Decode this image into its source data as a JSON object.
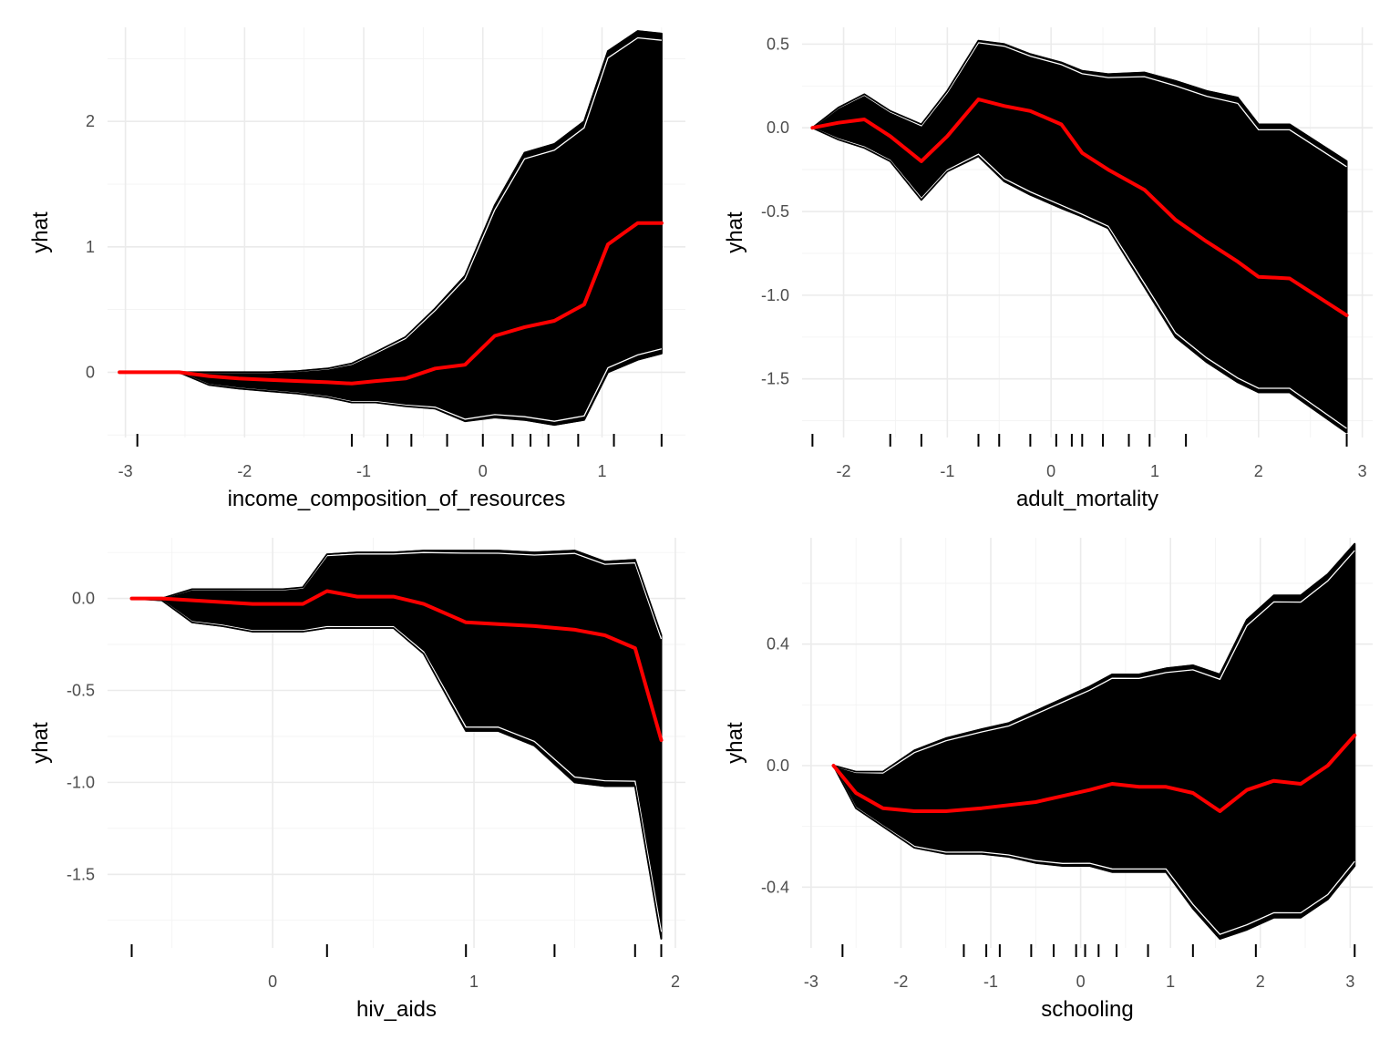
{
  "chart_data": [
    {
      "type": "line",
      "xlabel": "income_composition_of_resources",
      "ylabel": "yhat",
      "xlim": [
        -3.15,
        1.7
      ],
      "ylim": [
        -0.52,
        2.75
      ],
      "x_ticks": [
        -3,
        -2,
        -1,
        0,
        1
      ],
      "y_ticks": [
        0,
        1,
        2
      ],
      "x_tick_labels": [
        "-3",
        "-2",
        "-1",
        "0",
        "1"
      ],
      "y_tick_labels": [
        "0",
        "1",
        "2"
      ],
      "grid": true,
      "rug": [
        -2.9,
        -1.1,
        -0.8,
        -0.6,
        -0.3,
        0.0,
        0.25,
        0.4,
        0.55,
        0.8,
        1.1,
        1.5
      ],
      "series": [
        {
          "role": "pdp",
          "color": "#ff0000",
          "x": [
            -3.05,
            -2.55,
            -2.3,
            -2.05,
            -1.8,
            -1.55,
            -1.3,
            -1.1,
            -0.9,
            -0.65,
            -0.4,
            -0.15,
            0.1,
            0.35,
            0.6,
            0.85,
            1.05,
            1.3,
            1.5
          ],
          "y": [
            0.0,
            0.0,
            -0.03,
            -0.05,
            -0.06,
            -0.07,
            -0.08,
            -0.09,
            -0.07,
            -0.05,
            0.03,
            0.06,
            0.29,
            0.36,
            0.41,
            0.54,
            1.02,
            1.19,
            1.19
          ]
        },
        {
          "role": "ice-upper-envelope",
          "color": "#000000",
          "x": [
            -3.05,
            -2.55,
            -2.3,
            -2.05,
            -1.8,
            -1.55,
            -1.3,
            -1.1,
            -0.9,
            -0.65,
            -0.4,
            -0.15,
            0.1,
            0.35,
            0.6,
            0.85,
            1.05,
            1.3,
            1.5
          ],
          "y": [
            0.0,
            0.0,
            0.0,
            0.0,
            0.0,
            0.01,
            0.03,
            0.07,
            0.16,
            0.28,
            0.51,
            0.77,
            1.33,
            1.75,
            1.82,
            2.0,
            2.56,
            2.72,
            2.7
          ]
        },
        {
          "role": "ice-lower-envelope",
          "color": "#000000",
          "x": [
            -3.05,
            -2.55,
            -2.3,
            -2.05,
            -1.8,
            -1.55,
            -1.3,
            -1.1,
            -0.9,
            -0.65,
            -0.4,
            -0.15,
            0.1,
            0.35,
            0.6,
            0.85,
            1.05,
            1.3,
            1.5
          ],
          "y": [
            0.0,
            0.0,
            -0.1,
            -0.13,
            -0.15,
            -0.17,
            -0.2,
            -0.24,
            -0.24,
            -0.27,
            -0.29,
            -0.39,
            -0.36,
            -0.38,
            -0.42,
            -0.38,
            0.0,
            0.1,
            0.15
          ]
        }
      ]
    },
    {
      "type": "line",
      "xlabel": "adult_mortality",
      "ylabel": "yhat",
      "xlim": [
        -2.4,
        3.1
      ],
      "ylim": [
        -1.85,
        0.6
      ],
      "x_ticks": [
        -2,
        -1,
        0,
        1,
        2,
        3
      ],
      "y_ticks": [
        0.5,
        0.0,
        -0.5,
        -1.0,
        -1.5
      ],
      "x_tick_labels": [
        "-2",
        "-1",
        "0",
        "1",
        "2",
        "3"
      ],
      "y_tick_labels": [
        "0.5",
        "0.0",
        "-0.5",
        "-1.0",
        "-1.5"
      ],
      "grid": true,
      "rug": [
        -2.3,
        -1.55,
        -1.25,
        -0.7,
        -0.5,
        -0.2,
        0.05,
        0.2,
        0.3,
        0.5,
        0.75,
        0.95,
        1.3,
        2.85
      ],
      "series": [
        {
          "role": "pdp",
          "color": "#ff0000",
          "x": [
            -2.3,
            -2.05,
            -1.8,
            -1.55,
            -1.25,
            -1.0,
            -0.7,
            -0.45,
            -0.2,
            0.1,
            0.3,
            0.55,
            0.9,
            1.2,
            1.5,
            1.8,
            2.0,
            2.3,
            2.85
          ],
          "y": [
            0.0,
            0.03,
            0.05,
            -0.05,
            -0.2,
            -0.05,
            0.17,
            0.13,
            0.1,
            0.02,
            -0.15,
            -0.25,
            -0.37,
            -0.55,
            -0.68,
            -0.8,
            -0.89,
            -0.9,
            -1.12
          ]
        },
        {
          "role": "ice-upper-envelope",
          "color": "#000000",
          "x": [
            -2.3,
            -2.05,
            -1.8,
            -1.55,
            -1.25,
            -1.0,
            -0.7,
            -0.45,
            -0.2,
            0.1,
            0.3,
            0.55,
            0.9,
            1.2,
            1.5,
            1.8,
            2.0,
            2.3,
            2.85
          ],
          "y": [
            0.0,
            0.12,
            0.2,
            0.1,
            0.02,
            0.22,
            0.52,
            0.5,
            0.44,
            0.39,
            0.34,
            0.32,
            0.33,
            0.28,
            0.22,
            0.18,
            0.02,
            0.02,
            -0.2
          ]
        },
        {
          "role": "ice-lower-envelope",
          "color": "#000000",
          "x": [
            -2.3,
            -2.05,
            -1.8,
            -1.55,
            -1.25,
            -1.0,
            -0.7,
            -0.45,
            -0.2,
            0.1,
            0.3,
            0.55,
            0.9,
            1.2,
            1.5,
            1.8,
            2.0,
            2.3,
            2.85
          ],
          "y": [
            0.0,
            -0.07,
            -0.12,
            -0.2,
            -0.43,
            -0.26,
            -0.17,
            -0.32,
            -0.4,
            -0.48,
            -0.53,
            -0.6,
            -0.95,
            -1.25,
            -1.4,
            -1.52,
            -1.58,
            -1.58,
            -1.82
          ]
        }
      ]
    },
    {
      "type": "line",
      "xlabel": "hiv_aids",
      "ylabel": "yhat",
      "xlim": [
        -0.82,
        2.05
      ],
      "ylim": [
        -1.9,
        0.33
      ],
      "x_ticks": [
        0,
        1,
        2
      ],
      "y_ticks": [
        0.0,
        -0.5,
        -1.0,
        -1.5
      ],
      "x_tick_labels": [
        "0",
        "1",
        "2"
      ],
      "y_tick_labels": [
        "0.0",
        "-0.5",
        "-1.0",
        "-1.5"
      ],
      "grid": true,
      "rug": [
        -0.7,
        0.27,
        0.96,
        1.4,
        1.8,
        1.93
      ],
      "series": [
        {
          "role": "pdp",
          "color": "#ff0000",
          "x": [
            -0.7,
            -0.55,
            -0.4,
            -0.25,
            -0.1,
            0.05,
            0.15,
            0.27,
            0.42,
            0.6,
            0.75,
            0.96,
            1.12,
            1.3,
            1.5,
            1.65,
            1.8,
            1.93
          ],
          "y": [
            0.0,
            0.0,
            -0.01,
            -0.02,
            -0.03,
            -0.03,
            -0.03,
            0.04,
            0.01,
            0.01,
            -0.03,
            -0.13,
            -0.14,
            -0.15,
            -0.17,
            -0.2,
            -0.27,
            -0.77
          ]
        },
        {
          "role": "ice-upper-envelope",
          "color": "#000000",
          "x": [
            -0.7,
            -0.55,
            -0.4,
            -0.25,
            -0.1,
            0.05,
            0.15,
            0.27,
            0.42,
            0.6,
            0.75,
            0.96,
            1.12,
            1.3,
            1.5,
            1.65,
            1.8,
            1.93
          ],
          "y": [
            0.0,
            0.0,
            0.05,
            0.05,
            0.05,
            0.05,
            0.06,
            0.24,
            0.25,
            0.25,
            0.26,
            0.26,
            0.26,
            0.25,
            0.26,
            0.2,
            0.21,
            -0.2
          ]
        },
        {
          "role": "ice-lower-envelope",
          "color": "#000000",
          "x": [
            -0.7,
            -0.55,
            -0.4,
            -0.25,
            -0.1,
            0.05,
            0.15,
            0.27,
            0.42,
            0.6,
            0.75,
            0.96,
            1.12,
            1.3,
            1.5,
            1.65,
            1.8,
            1.93
          ],
          "y": [
            0.0,
            -0.01,
            -0.13,
            -0.15,
            -0.18,
            -0.18,
            -0.18,
            -0.16,
            -0.16,
            -0.16,
            -0.3,
            -0.72,
            -0.72,
            -0.8,
            -1.0,
            -1.02,
            -1.02,
            -1.85
          ]
        }
      ]
    },
    {
      "type": "line",
      "xlabel": "schooling",
      "ylabel": "yhat",
      "xlim": [
        -3.1,
        3.25
      ],
      "ylim": [
        -0.6,
        0.75
      ],
      "x_ticks": [
        -3,
        -2,
        -1,
        0,
        1,
        2,
        3
      ],
      "y_ticks": [
        0.4,
        0.0,
        -0.4
      ],
      "x_tick_labels": [
        "-3",
        "-2",
        "-1",
        "0",
        "1",
        "2",
        "3"
      ],
      "y_tick_labels": [
        "0.4",
        "0.0",
        "-0.4"
      ],
      "grid": true,
      "rug": [
        -2.65,
        -1.3,
        -1.05,
        -0.9,
        -0.55,
        -0.3,
        -0.05,
        0.05,
        0.2,
        0.4,
        0.75,
        1.25,
        1.95,
        3.05
      ],
      "series": [
        {
          "role": "pdp",
          "color": "#ff0000",
          "x": [
            -2.75,
            -2.5,
            -2.2,
            -1.85,
            -1.5,
            -1.1,
            -0.8,
            -0.5,
            -0.2,
            0.1,
            0.35,
            0.65,
            0.95,
            1.25,
            1.55,
            1.85,
            2.15,
            2.45,
            2.75,
            3.05
          ],
          "y": [
            0.0,
            -0.09,
            -0.14,
            -0.15,
            -0.15,
            -0.14,
            -0.13,
            -0.12,
            -0.1,
            -0.08,
            -0.06,
            -0.07,
            -0.07,
            -0.09,
            -0.15,
            -0.08,
            -0.05,
            -0.06,
            0.0,
            0.1
          ]
        },
        {
          "role": "ice-upper-envelope",
          "color": "#000000",
          "x": [
            -2.75,
            -2.5,
            -2.2,
            -1.85,
            -1.5,
            -1.1,
            -0.8,
            -0.5,
            -0.2,
            0.1,
            0.35,
            0.65,
            0.95,
            1.25,
            1.55,
            1.85,
            2.15,
            2.45,
            2.75,
            3.05
          ],
          "y": [
            0.0,
            -0.02,
            -0.02,
            0.05,
            0.09,
            0.12,
            0.14,
            0.18,
            0.22,
            0.26,
            0.3,
            0.3,
            0.32,
            0.33,
            0.3,
            0.48,
            0.56,
            0.56,
            0.63,
            0.73
          ]
        },
        {
          "role": "ice-lower-envelope",
          "color": "#000000",
          "x": [
            -2.75,
            -2.5,
            -2.2,
            -1.85,
            -1.5,
            -1.1,
            -0.8,
            -0.5,
            -0.2,
            0.1,
            0.35,
            0.65,
            0.95,
            1.25,
            1.55,
            1.85,
            2.15,
            2.45,
            2.75,
            3.05
          ],
          "y": [
            0.0,
            -0.14,
            -0.2,
            -0.27,
            -0.29,
            -0.29,
            -0.3,
            -0.32,
            -0.33,
            -0.33,
            -0.35,
            -0.35,
            -0.35,
            -0.47,
            -0.57,
            -0.54,
            -0.5,
            -0.5,
            -0.44,
            -0.33
          ]
        }
      ]
    }
  ]
}
